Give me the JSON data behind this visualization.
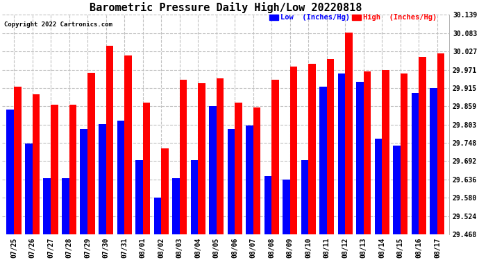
{
  "title": "Barometric Pressure Daily High/Low 20220818",
  "copyright": "Copyright 2022 Cartronics.com",
  "legend_low": "Low  (Inches/Hg)",
  "legend_high": "High  (Inches/Hg)",
  "dates": [
    "07/25",
    "07/26",
    "07/27",
    "07/28",
    "07/29",
    "07/30",
    "07/31",
    "08/01",
    "08/02",
    "08/03",
    "08/04",
    "08/05",
    "08/06",
    "08/07",
    "08/08",
    "08/09",
    "08/10",
    "08/11",
    "08/12",
    "08/13",
    "08/14",
    "08/15",
    "08/16",
    "08/17"
  ],
  "high": [
    29.92,
    29.895,
    29.865,
    29.865,
    29.961,
    30.044,
    30.015,
    29.87,
    29.73,
    29.94,
    29.93,
    29.945,
    29.87,
    29.855,
    29.94,
    29.98,
    29.99,
    30.005,
    30.085,
    29.965,
    29.97,
    29.96,
    30.01,
    30.02
  ],
  "low": [
    29.85,
    29.745,
    29.64,
    29.64,
    29.79,
    29.805,
    29.815,
    29.695,
    29.58,
    29.64,
    29.695,
    29.86,
    29.79,
    29.8,
    29.645,
    29.635,
    29.695,
    29.92,
    29.96,
    29.935,
    29.76,
    29.74,
    29.9,
    29.915
  ],
  "ymin": 29.468,
  "ymax": 30.139,
  "yticks": [
    29.468,
    29.524,
    29.58,
    29.636,
    29.692,
    29.748,
    29.803,
    29.859,
    29.915,
    29.971,
    30.027,
    30.083,
    30.139
  ],
  "high_color": "#ff0000",
  "low_color": "#0000ff",
  "background_color": "#ffffff",
  "grid_color": "#c0c0c0",
  "title_fontsize": 11,
  "tick_fontsize": 7,
  "bar_width": 0.4
}
